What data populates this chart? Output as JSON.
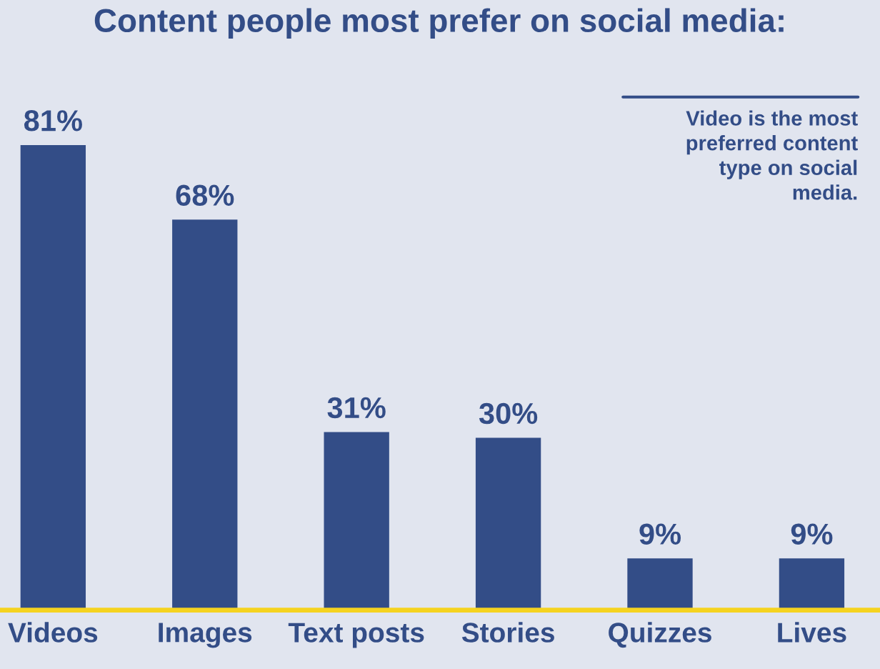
{
  "chart_data": {
    "type": "bar",
    "title": "Content people most prefer on social media:",
    "categories": [
      "Videos",
      "Images",
      "Text posts",
      "Stories",
      "Quizzes",
      "Lives"
    ],
    "values": [
      81,
      68,
      31,
      30,
      9,
      9
    ],
    "value_labels": [
      "81%",
      "68%",
      "31%",
      "30%",
      "9%",
      "9%"
    ],
    "color": "#334d87",
    "tick_labels": "x",
    "grid": false,
    "annotations": [
      "Video is the most\npreferred content\ntype on social\nmedia."
    ]
  }
}
